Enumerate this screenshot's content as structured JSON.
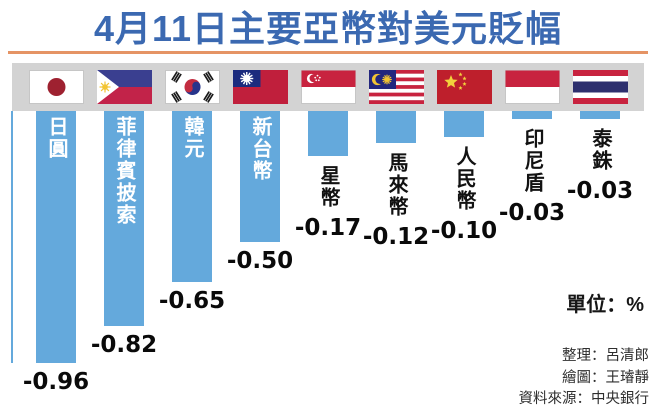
{
  "page": {
    "title": "4月11日主要亞幣對美元貶幅",
    "unit_label": "單位：%",
    "credits": [
      {
        "label": "整理：呂清郎"
      },
      {
        "label": "繪圖：王璿靜"
      },
      {
        "label": "資料來源：中央銀行"
      }
    ]
  },
  "chart_data": {
    "type": "bar",
    "title": "4月11日主要亞幣對美元貶幅",
    "unit": "%",
    "ylabel": "單位：%",
    "ylim": [
      -1.0,
      0
    ],
    "grid": false,
    "legend_position": "none",
    "categories": [
      "日圓",
      "菲律賓披索",
      "韓元",
      "新台幣",
      "星幣",
      "馬來幣",
      "人民幣",
      "印尼盾",
      "泰銖"
    ],
    "values": [
      -0.96,
      -0.82,
      -0.65,
      -0.5,
      -0.17,
      -0.12,
      -0.1,
      -0.03,
      -0.03
    ],
    "value_labels": [
      "-0.96",
      "-0.82",
      "-0.65",
      "-0.50",
      "-0.17",
      "-0.12",
      "-0.10",
      "-0.03",
      "-0.03"
    ],
    "flag_icons": [
      "japan-flag-icon",
      "philippines-flag-icon",
      "south-korea-flag-icon",
      "taiwan-flag-icon",
      "singapore-flag-icon",
      "malaysia-flag-icon",
      "china-flag-icon",
      "indonesia-flag-icon",
      "thailand-flag-icon"
    ]
  },
  "colors": {
    "title": "#3B69B1",
    "divider": "#E59465",
    "flag_band": "#D3D3D3",
    "bar": "#64A9DC",
    "bar_label_inside": "#FFFFFF",
    "text": "#111111"
  }
}
